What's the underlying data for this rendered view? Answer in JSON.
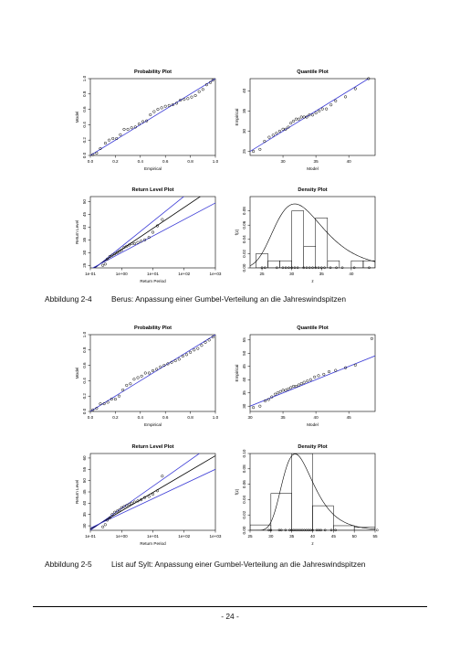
{
  "figures": [
    {
      "id": "2-4",
      "caption": {
        "label": "Abbildung 2-4",
        "text": "Berus: Anpassung einer Gumbel-Verteilung an die Jahreswindspitzen"
      },
      "panels": {
        "pp": {
          "title": "Probability Plot",
          "xlabel": "Empirical",
          "ylabel": "Model",
          "xticks": [
            0.0,
            0.2,
            0.4,
            0.6,
            0.8,
            1.0
          ],
          "yticks": [
            0.0,
            0.2,
            0.4,
            0.6,
            0.8,
            1.0
          ],
          "tick_labels": [
            "0.0",
            "0.2",
            "0.4",
            "0.6",
            "0.8",
            "1.0"
          ]
        },
        "qq": {
          "title": "Quantile Plot",
          "xlabel": "Model",
          "ylabel": "Empirical",
          "xticks": [
            30,
            35,
            40
          ],
          "yticks": [
            25,
            30,
            35,
            40
          ]
        },
        "rl": {
          "title": "Return Level Plot",
          "xlabel": "Return Period",
          "ylabel": "Return Level",
          "xtick_labels": [
            "1e-01",
            "1e+00",
            "1e+01",
            "1e+02",
            "1e+03"
          ],
          "yticks": [
            25,
            30,
            35,
            40,
            45,
            50
          ]
        },
        "dp": {
          "title": "Density Plot",
          "xlabel": "z",
          "ylabel": "f(z)",
          "xticks": [
            25,
            30,
            35,
            40
          ],
          "yticks": [
            "0.00",
            "0.02",
            "0.04",
            "0.06",
            "0.08"
          ]
        }
      }
    },
    {
      "id": "2-5",
      "caption": {
        "label": "Abbildung 2-5",
        "text": "List auf Sylt: Anpassung einer Gumbel-Verteilung an die Jahreswindspitzen"
      },
      "panels": {
        "pp": {
          "title": "Probability Plot",
          "xlabel": "Empirical",
          "ylabel": "Model",
          "xticks": [
            0.0,
            0.2,
            0.4,
            0.6,
            0.8,
            1.0
          ],
          "yticks": [
            0.0,
            0.2,
            0.4,
            0.6,
            0.8,
            1.0
          ],
          "tick_labels": [
            "0.0",
            "0.2",
            "0.4",
            "0.6",
            "0.8",
            "1.0"
          ]
        },
        "qq": {
          "title": "Quantile Plot",
          "xlabel": "Model",
          "ylabel": "Empirical",
          "xticks": [
            30,
            35,
            40,
            45
          ],
          "yticks": [
            30,
            35,
            40,
            45,
            50,
            55
          ]
        },
        "rl": {
          "title": "Return Level Plot",
          "xlabel": "Return Period",
          "ylabel": "Return Level",
          "xtick_labels": [
            "1e-01",
            "1e+00",
            "1e+01",
            "1e+02",
            "1e+03"
          ],
          "yticks": [
            30,
            35,
            40,
            45,
            50,
            55,
            60
          ]
        },
        "dp": {
          "title": "Density Plot",
          "xlabel": "z",
          "ylabel": "f(z)",
          "xticks": [
            25,
            30,
            35,
            40,
            45,
            50,
            55
          ],
          "yticks": [
            "0.00",
            "0.02",
            "0.04",
            "0.06",
            "0.08",
            "0.10"
          ]
        }
      }
    }
  ],
  "page_number": "- 24 -",
  "colors": {
    "fit_line": "#3b3bd6",
    "ink": "#000000"
  },
  "chart_data": [
    {
      "figure": "2-4",
      "type": "scatter",
      "title": "Probability Plot",
      "xlabel": "Empirical",
      "ylabel": "Model",
      "xlim": [
        0,
        1
      ],
      "ylim": [
        0,
        1
      ],
      "reference_line": "y = x",
      "x": [
        0.02,
        0.05,
        0.08,
        0.12,
        0.15,
        0.18,
        0.21,
        0.24,
        0.27,
        0.3,
        0.33,
        0.36,
        0.39,
        0.42,
        0.45,
        0.48,
        0.51,
        0.54,
        0.57,
        0.6,
        0.63,
        0.66,
        0.69,
        0.72,
        0.75,
        0.78,
        0.81,
        0.84,
        0.87,
        0.9,
        0.93,
        0.96,
        0.98
      ],
      "y": [
        0.01,
        0.03,
        0.09,
        0.16,
        0.2,
        0.22,
        0.22,
        0.27,
        0.34,
        0.34,
        0.36,
        0.37,
        0.41,
        0.44,
        0.45,
        0.53,
        0.57,
        0.6,
        0.62,
        0.64,
        0.65,
        0.66,
        0.68,
        0.72,
        0.73,
        0.74,
        0.76,
        0.78,
        0.83,
        0.86,
        0.92,
        0.95,
        0.98
      ]
    },
    {
      "figure": "2-4",
      "type": "scatter",
      "title": "Quantile Plot",
      "xlabel": "Model",
      "ylabel": "Empirical",
      "xlim": [
        25,
        44
      ],
      "ylim": [
        24,
        43
      ],
      "reference_line": "y = x",
      "x": [
        25.5,
        26.5,
        27.2,
        27.9,
        28.5,
        29.0,
        29.5,
        30.0,
        30.4,
        30.8,
        31.2,
        31.6,
        32.0,
        32.4,
        32.8,
        33.2,
        33.6,
        34.0,
        34.5,
        35.0,
        35.5,
        36.0,
        36.6,
        37.3,
        38.0,
        39.5,
        41.0,
        43.0
      ],
      "y": [
        25.0,
        25.5,
        27.5,
        28.5,
        29.0,
        29.5,
        30.0,
        30.5,
        30.5,
        31.0,
        32.0,
        32.5,
        33.0,
        33.0,
        33.5,
        33.5,
        33.5,
        34.0,
        34.0,
        34.5,
        35.0,
        35.5,
        35.5,
        36.5,
        37.5,
        38.5,
        40.5,
        43.0
      ]
    },
    {
      "figure": "2-4",
      "type": "line",
      "title": "Return Level Plot",
      "xlabel": "Return Period",
      "ylabel": "Return Level",
      "x_scale": "log",
      "xlim": [
        0.1,
        1000
      ],
      "ylim": [
        24,
        52
      ],
      "series": [
        {
          "x": [
            0.1,
            1000
          ],
          "y": [
            22.5,
            62.0
          ]
        },
        {
          "x": [
            0.1,
            1000
          ],
          "y": [
            23.0,
            56.0
          ]
        },
        {
          "x": [
            0.1,
            1000
          ],
          "y": [
            23.5,
            49.5
          ]
        }
      ],
      "points": {
        "x": [
          0.25,
          0.3,
          0.35,
          0.42,
          0.5,
          0.6,
          0.72,
          0.85,
          1.0,
          1.2,
          1.45,
          1.75,
          2.1,
          2.6,
          3.3,
          4.2,
          5.5,
          7.5,
          10,
          14,
          20
        ],
        "y": [
          25.0,
          25.5,
          27.5,
          28.5,
          29.0,
          29.5,
          30.0,
          30.5,
          31.0,
          32.0,
          32.5,
          33.0,
          33.5,
          33.5,
          34.0,
          34.5,
          35.0,
          36.0,
          38.0,
          40.5,
          43.0
        ]
      }
    },
    {
      "figure": "2-4",
      "type": "histogram",
      "title": "Density Plot",
      "xlabel": "z",
      "ylabel": "f(z)",
      "xlim": [
        23,
        44
      ],
      "ylim": [
        0,
        0.1
      ],
      "bins": [
        [
          24,
          26,
          0.02
        ],
        [
          26,
          28,
          0.01
        ],
        [
          28,
          30,
          0.01
        ],
        [
          30,
          32,
          0.08
        ],
        [
          32,
          34,
          0.03
        ],
        [
          34,
          36,
          0.07
        ],
        [
          36,
          38,
          0.01
        ],
        [
          38,
          40,
          0.0
        ],
        [
          40,
          42,
          0.01
        ],
        [
          42,
          44,
          0.01
        ]
      ],
      "curve": {
        "distribution": "gumbel",
        "location": 30.5,
        "scale": 4.1
      },
      "rug": [
        25,
        25.5,
        27.5,
        28.5,
        29,
        29.5,
        30,
        30.5,
        31,
        32,
        32.5,
        33,
        33.5,
        34,
        34.5,
        35,
        35.5,
        36.5,
        37.5,
        38.5,
        40.5,
        43
      ]
    },
    {
      "figure": "2-5",
      "type": "scatter",
      "title": "Probability Plot",
      "xlabel": "Empirical",
      "ylabel": "Model",
      "xlim": [
        0,
        1
      ],
      "ylim": [
        0,
        1
      ],
      "reference_line": "y = x",
      "x": [
        0.02,
        0.05,
        0.08,
        0.11,
        0.14,
        0.17,
        0.2,
        0.23,
        0.26,
        0.29,
        0.32,
        0.35,
        0.38,
        0.41,
        0.44,
        0.47,
        0.5,
        0.53,
        0.56,
        0.59,
        0.62,
        0.65,
        0.68,
        0.71,
        0.74,
        0.77,
        0.8,
        0.83,
        0.86,
        0.89,
        0.92,
        0.95,
        0.98
      ],
      "y": [
        0.02,
        0.04,
        0.1,
        0.1,
        0.12,
        0.16,
        0.16,
        0.2,
        0.28,
        0.34,
        0.36,
        0.42,
        0.44,
        0.46,
        0.5,
        0.5,
        0.53,
        0.55,
        0.58,
        0.6,
        0.62,
        0.64,
        0.66,
        0.68,
        0.72,
        0.74,
        0.77,
        0.8,
        0.82,
        0.86,
        0.9,
        0.93,
        0.97
      ]
    },
    {
      "figure": "2-5",
      "type": "scatter",
      "title": "Quantile Plot",
      "xlabel": "Model",
      "ylabel": "Empirical",
      "xlim": [
        30,
        49
      ],
      "ylim": [
        28,
        57
      ],
      "reference_line": "y = x",
      "x": [
        30.5,
        31.5,
        32.3,
        32.8,
        33.3,
        33.8,
        34.2,
        34.6,
        35.0,
        35.4,
        35.8,
        36.2,
        36.6,
        37.0,
        37.4,
        37.8,
        38.2,
        38.7,
        39.2,
        39.8,
        40.4,
        41.2,
        42.0,
        43.0,
        44.5,
        46.0,
        48.5
      ],
      "y": [
        29.5,
        30.0,
        32.0,
        32.5,
        33.5,
        34.5,
        35.0,
        35.5,
        36.0,
        36.0,
        36.5,
        37.0,
        37.5,
        37.5,
        38.0,
        38.5,
        39.0,
        39.5,
        40.0,
        41.0,
        41.5,
        42.0,
        43.0,
        43.5,
        44.5,
        45.5,
        55.5
      ]
    },
    {
      "figure": "2-5",
      "type": "line",
      "title": "Return Level Plot",
      "xlabel": "Return Period",
      "ylabel": "Return Level",
      "x_scale": "log",
      "xlim": [
        0.1,
        1000
      ],
      "ylim": [
        28,
        62
      ],
      "series": [
        {
          "x": [
            0.1,
            1000
          ],
          "y": [
            28.0,
            67.0
          ]
        },
        {
          "x": [
            0.1,
            1000
          ],
          "y": [
            28.5,
            61.0
          ]
        },
        {
          "x": [
            0.1,
            1000
          ],
          "y": [
            29.0,
            55.0
          ]
        }
      ],
      "points": {
        "x": [
          0.25,
          0.3,
          0.35,
          0.42,
          0.5,
          0.6,
          0.72,
          0.85,
          1.0,
          1.2,
          1.45,
          1.75,
          2.1,
          2.6,
          3.3,
          4.2,
          5.5,
          7.5,
          10,
          14,
          20
        ],
        "y": [
          29.5,
          30.5,
          32.5,
          33.5,
          35.0,
          36.0,
          36.5,
          37.0,
          38.0,
          38.5,
          39.0,
          39.5,
          40.0,
          40.5,
          41.0,
          41.5,
          42.5,
          43.0,
          44.0,
          45.5,
          52.0
        ]
      }
    },
    {
      "figure": "2-5",
      "type": "histogram",
      "title": "Density Plot",
      "xlabel": "z",
      "ylabel": "f(z)",
      "xlim": [
        25,
        55
      ],
      "ylim": [
        0,
        0.1
      ],
      "bins": [
        [
          25,
          30,
          0.007
        ],
        [
          30,
          35,
          0.048
        ],
        [
          35,
          40,
          0.1
        ],
        [
          40,
          45,
          0.032
        ],
        [
          45,
          50,
          0.006
        ],
        [
          50,
          55,
          0.004
        ]
      ],
      "curve": {
        "distribution": "gumbel",
        "location": 35.8,
        "scale": 3.7
      },
      "rug": [
        29.5,
        30,
        32,
        32.5,
        33.5,
        34.5,
        35,
        35.5,
        36,
        36.5,
        37,
        37.5,
        38,
        38.5,
        39,
        39.5,
        40,
        41,
        41.5,
        42,
        43,
        44.5,
        45.5,
        55.5
      ]
    }
  ]
}
